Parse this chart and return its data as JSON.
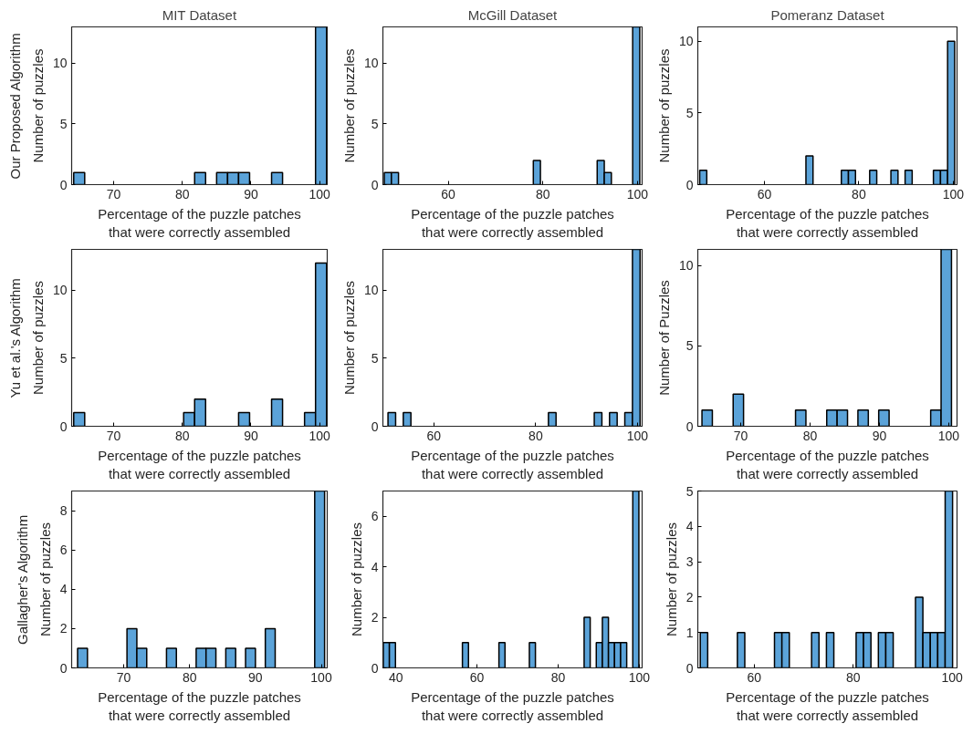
{
  "chart_data": [
    {
      "type": "histogram",
      "title": "MIT Dataset",
      "annotations": [
        "Our Proposed Algorithm"
      ],
      "xlabel": "Percentage of the puzzle patches\nthat were correctly assembled",
      "ylabel": "Number of puzzles",
      "color": "#5ba3d9",
      "xlim": [
        63.9,
        101.1
      ],
      "xticks": [
        70,
        80,
        90,
        100
      ],
      "ylim": [
        0,
        13
      ],
      "yticks": [
        0,
        5,
        10
      ],
      "grid": false,
      "bins": [
        64.2,
        65.8,
        67.4,
        69,
        70.6,
        72.2,
        73.8,
        75.4,
        77,
        78.6,
        80.2,
        81.8,
        83.4,
        85,
        86.6,
        88.2,
        89.8,
        91.4,
        93,
        94.6,
        96.2,
        97.8,
        99.4,
        101
      ],
      "values": [
        1,
        0,
        0,
        0,
        0,
        0,
        0,
        0,
        0,
        0,
        0,
        1,
        0,
        1,
        1,
        1,
        0,
        0,
        1,
        0,
        0,
        0,
        13
      ]
    },
    {
      "type": "histogram",
      "title": "McGill Dataset",
      "xlabel": "Percentage of the puzzle patches\nthat were correctly assembled",
      "ylabel": "Number of puzzles",
      "color": "#5ba3d9",
      "xlim": [
        46.2,
        101
      ],
      "xticks": [
        60,
        80,
        100
      ],
      "ylim": [
        0,
        13
      ],
      "yticks": [
        0,
        5,
        10
      ],
      "grid": false,
      "bins": [
        46.5,
        48,
        49.5,
        51,
        52.5,
        54,
        55.5,
        57,
        58.5,
        60,
        61.5,
        63,
        64.5,
        66,
        67.5,
        69,
        70.5,
        72,
        73.5,
        75,
        76.5,
        78,
        79.5,
        81,
        82.5,
        84,
        85.5,
        87,
        88.5,
        90,
        91.5,
        93,
        94.5,
        96,
        97.5,
        99,
        100.5
      ],
      "values": [
        1,
        1,
        0,
        0,
        0,
        0,
        0,
        0,
        0,
        0,
        0,
        0,
        0,
        0,
        0,
        0,
        0,
        0,
        0,
        0,
        0,
        2,
        0,
        0,
        0,
        0,
        0,
        0,
        0,
        0,
        2,
        1,
        0,
        0,
        0,
        13
      ]
    },
    {
      "type": "histogram",
      "title": "Pomeranz Dataset",
      "xlabel": "Percentage of the puzzle patches\nthat were correctly assembled",
      "ylabel": "Number of puzzles",
      "color": "#5ba3d9",
      "xlim": [
        45.9,
        100.8
      ],
      "xticks": [
        60,
        80,
        100
      ],
      "ylim": [
        0,
        11
      ],
      "yticks": [
        0,
        5,
        10
      ],
      "grid": false,
      "bins": [
        46.3,
        47.8,
        49.3,
        50.8,
        52.3,
        53.8,
        55.3,
        56.8,
        58.3,
        59.8,
        61.3,
        62.8,
        64.3,
        65.8,
        67.3,
        68.8,
        70.3,
        71.8,
        73.3,
        74.8,
        76.3,
        77.8,
        79.3,
        80.8,
        82.3,
        83.8,
        85.3,
        86.8,
        88.3,
        89.8,
        91.3,
        92.8,
        94.3,
        95.8,
        97.3,
        98.8,
        100.3
      ],
      "values": [
        1,
        0,
        0,
        0,
        0,
        0,
        0,
        0,
        0,
        0,
        0,
        0,
        0,
        0,
        0,
        2,
        0,
        0,
        0,
        0,
        1,
        1,
        0,
        0,
        1,
        0,
        0,
        1,
        0,
        1,
        0,
        0,
        0,
        1,
        1,
        10
      ]
    },
    {
      "type": "histogram",
      "annotations": [
        "Yu et al.'s Algorithm"
      ],
      "xlabel": "Percentage of the puzzle patches\nthat were correctly assembled",
      "ylabel": "Number of puzzles",
      "color": "#5ba3d9",
      "xlim": [
        63.9,
        101.1
      ],
      "xticks": [
        70,
        80,
        90,
        100
      ],
      "ylim": [
        0,
        13
      ],
      "yticks": [
        0,
        5,
        10
      ],
      "grid": false,
      "bins": [
        64.2,
        65.8,
        67.4,
        69,
        70.6,
        72.2,
        73.8,
        75.4,
        77,
        78.6,
        80.2,
        81.8,
        83.4,
        85,
        86.6,
        88.2,
        89.8,
        91.4,
        93,
        94.6,
        96.2,
        97.8,
        99.4,
        101
      ],
      "values": [
        1,
        0,
        0,
        0,
        0,
        0,
        0,
        0,
        0,
        0,
        1,
        2,
        0,
        0,
        0,
        1,
        0,
        0,
        2,
        0,
        0,
        1,
        12
      ]
    },
    {
      "type": "histogram",
      "xlabel": "Percentage of the puzzle patches\nthat were correctly assembled",
      "ylabel": "Number of puzzles",
      "color": "#5ba3d9",
      "xlim": [
        50,
        100.9
      ],
      "xticks": [
        60,
        80,
        100
      ],
      "ylim": [
        0,
        13
      ],
      "yticks": [
        0,
        5,
        10
      ],
      "grid": false,
      "bins": [
        51,
        52.5,
        54,
        55.5,
        57,
        58.5,
        60,
        61.5,
        63,
        64.5,
        66,
        67.5,
        69,
        70.5,
        72,
        73.5,
        75,
        76.5,
        78,
        79.5,
        81,
        82.5,
        84,
        85.5,
        87,
        88.5,
        90,
        91.5,
        93,
        94.5,
        96,
        97.5,
        99,
        100.5
      ],
      "values": [
        1,
        0,
        1,
        0,
        0,
        0,
        0,
        0,
        0,
        0,
        0,
        0,
        0,
        0,
        0,
        0,
        0,
        0,
        0,
        0,
        0,
        1,
        0,
        0,
        0,
        0,
        0,
        1,
        0,
        1,
        0,
        1,
        13
      ]
    },
    {
      "type": "histogram",
      "xlabel": "Percentage of the puzzle patches\nthat were correctly assembled",
      "ylabel": "Number of Puzzles",
      "color": "#5ba3d9",
      "xlim": [
        63.8,
        101.2
      ],
      "xticks": [
        70,
        80,
        90,
        100
      ],
      "ylim": [
        0,
        11
      ],
      "yticks": [
        0,
        5,
        10
      ],
      "grid": false,
      "bins": [
        64.4,
        65.9,
        67.4,
        68.9,
        70.4,
        71.9,
        73.4,
        74.9,
        76.4,
        77.9,
        79.4,
        80.9,
        82.4,
        83.9,
        85.4,
        86.9,
        88.4,
        89.9,
        91.4,
        92.9,
        94.4,
        95.9,
        97.4,
        98.9,
        100.4
      ],
      "values": [
        1,
        0,
        0,
        2,
        0,
        0,
        0,
        0,
        0,
        1,
        0,
        0,
        1,
        1,
        0,
        1,
        0,
        1,
        0,
        0,
        0,
        0,
        1,
        11
      ]
    },
    {
      "type": "histogram",
      "annotations": [
        "Gallagher's Algorithm"
      ],
      "xlabel": "Percentage of the puzzle patches\nthat were correctly assembled",
      "ylabel": "Number of puzzles",
      "color": "#5ba3d9",
      "xlim": [
        62.1,
        100.9
      ],
      "xticks": [
        70,
        80,
        90,
        100
      ],
      "ylim": [
        0,
        9
      ],
      "yticks": [
        0,
        2,
        4,
        6,
        8
      ],
      "grid": false,
      "bins": [
        63,
        64.5,
        66,
        67.5,
        69,
        70.5,
        72,
        73.5,
        75,
        76.5,
        78,
        79.5,
        81,
        82.5,
        84,
        85.5,
        87,
        88.5,
        90,
        91.5,
        93,
        94.5,
        96,
        97.5,
        99,
        100.5
      ],
      "values": [
        1,
        0,
        0,
        0,
        0,
        2,
        1,
        0,
        0,
        1,
        0,
        0,
        1,
        1,
        0,
        1,
        0,
        1,
        0,
        2,
        0,
        0,
        0,
        0,
        9
      ]
    },
    {
      "type": "histogram",
      "xlabel": "Percentage of the puzzle patches\nthat were correctly assembled",
      "ylabel": "Number of puzzles",
      "color": "#5ba3d9",
      "xlim": [
        36.8,
        100.7
      ],
      "xticks": [
        40,
        60,
        80,
        100
      ],
      "ylim": [
        0,
        7
      ],
      "yticks": [
        0,
        2,
        4,
        6
      ],
      "grid": false,
      "bins": [
        36.9,
        38.4,
        39.9,
        41.4,
        42.9,
        44.4,
        45.9,
        47.4,
        48.9,
        50.4,
        51.9,
        53.4,
        54.9,
        56.4,
        57.9,
        59.4,
        60.9,
        62.4,
        63.9,
        65.4,
        66.9,
        68.4,
        69.9,
        71.4,
        72.9,
        74.4,
        75.9,
        77.4,
        78.9,
        80.4,
        81.9,
        83.4,
        84.9,
        86.4,
        87.9,
        89.4,
        90.9,
        92.4,
        93.9,
        95.4,
        96.9,
        98.4,
        99.9
      ],
      "values": [
        1,
        1,
        0,
        0,
        0,
        0,
        0,
        0,
        0,
        0,
        0,
        0,
        0,
        1,
        0,
        0,
        0,
        0,
        0,
        1,
        0,
        0,
        0,
        0,
        1,
        0,
        0,
        0,
        0,
        0,
        0,
        0,
        0,
        2,
        0,
        1,
        2,
        1,
        1,
        1,
        0,
        7
      ]
    },
    {
      "type": "histogram",
      "xlabel": "Percentage of the puzzle patches\nthat were correctly assembled",
      "ylabel": "Number of puzzles",
      "color": "#5ba3d9",
      "xlim": [
        48.6,
        101
      ],
      "xticks": [
        60,
        80,
        100
      ],
      "ylim": [
        0,
        5
      ],
      "yticks": [
        0,
        1,
        2,
        3,
        4,
        5
      ],
      "grid": false,
      "bins": [
        49.1,
        50.6,
        52.1,
        53.6,
        55.1,
        56.6,
        58.1,
        59.6,
        61.1,
        62.6,
        64.1,
        65.6,
        67.1,
        68.6,
        70.1,
        71.6,
        73.1,
        74.6,
        76.1,
        77.6,
        79.1,
        80.6,
        82.1,
        83.6,
        85.1,
        86.6,
        88.1,
        89.6,
        91.1,
        92.6,
        94.1,
        95.6,
        97.1,
        98.6,
        100.1
      ],
      "values": [
        1,
        0,
        0,
        0,
        0,
        1,
        0,
        0,
        0,
        0,
        1,
        1,
        0,
        0,
        0,
        1,
        0,
        1,
        0,
        0,
        0,
        1,
        1,
        0,
        1,
        1,
        0,
        0,
        0,
        2,
        1,
        1,
        1,
        5
      ]
    }
  ]
}
